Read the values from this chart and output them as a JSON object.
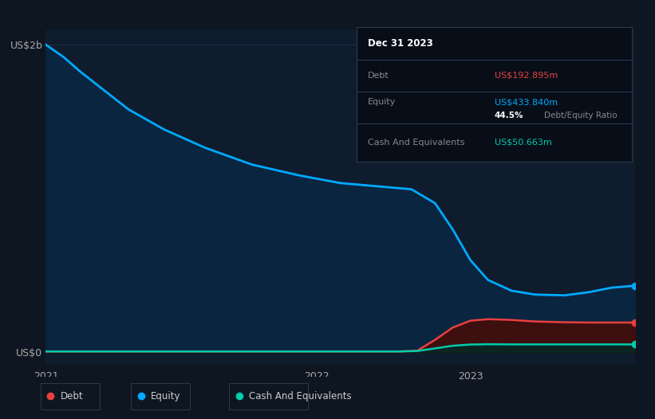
{
  "background_color": "#0e1621",
  "plot_bg_color": "#0e1c2e",
  "x_ticks": [
    "2021",
    "2022",
    "2023"
  ],
  "equity_color": "#00aaff",
  "equity_fill": "#0a2540",
  "debt_color": "#e84040",
  "debt_fill": "#3d0f0f",
  "cash_color": "#00ccaa",
  "cash_fill": "#0a2520",
  "grid_color": "#1a2e48",
  "equity_data_x": [
    0.0,
    0.03,
    0.06,
    0.1,
    0.14,
    0.2,
    0.27,
    0.35,
    0.43,
    0.5,
    0.56,
    0.62,
    0.66,
    0.69,
    0.72,
    0.75,
    0.79,
    0.83,
    0.88,
    0.92,
    0.96,
    1.0
  ],
  "equity_data_y": [
    2000,
    1920,
    1820,
    1700,
    1580,
    1450,
    1330,
    1220,
    1150,
    1100,
    1080,
    1060,
    970,
    800,
    600,
    470,
    400,
    375,
    370,
    390,
    420,
    433
  ],
  "debt_data_x": [
    0.0,
    0.6,
    0.63,
    0.66,
    0.69,
    0.72,
    0.75,
    0.79,
    0.83,
    0.88,
    0.92,
    0.96,
    1.0
  ],
  "debt_data_y": [
    5,
    5,
    10,
    80,
    160,
    205,
    215,
    210,
    200,
    195,
    193,
    193,
    193
  ],
  "cash_data_x": [
    0.0,
    0.6,
    0.63,
    0.66,
    0.69,
    0.72,
    0.75,
    0.79,
    0.83,
    0.88,
    0.92,
    0.96,
    1.0
  ],
  "cash_data_y": [
    5,
    5,
    8,
    25,
    42,
    50,
    52,
    51,
    51,
    51,
    51,
    51,
    51
  ],
  "ylim_min": -80,
  "ylim_max": 2100,
  "dot_size": 6,
  "info_label_color": "#888888",
  "info_bg": "#080e18",
  "info_border": "#2a3a50"
}
